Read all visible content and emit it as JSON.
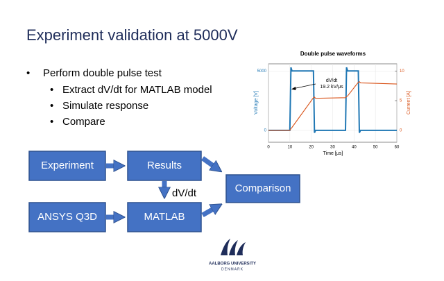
{
  "slide": {
    "title": "Experiment validation at 5000V",
    "bullets": [
      {
        "text": "Perform double pulse test",
        "sub": [
          "Extract dV/dt for MATLAB model",
          "Simulate response",
          "Compare"
        ]
      }
    ]
  },
  "diagram": {
    "nodes": [
      "Experiment",
      "Results",
      "Comparison",
      "ANSYS Q3D",
      "MATLAB"
    ],
    "edge_label": "dV/dt"
  },
  "logo": {
    "name": "AALBORG UNIVERSITY",
    "country": "DENMARK"
  },
  "chart_data": {
    "type": "line",
    "title": "Double pulse waveforms",
    "x_label": "Time [μs]",
    "y_label": "Voltage [V]",
    "y2_label": "Current [A]",
    "annotation": [
      "dV/dt",
      "19.2 kV/μs"
    ],
    "x": [
      0,
      10,
      10.5,
      11,
      21,
      21.5,
      22,
      36,
      36.5,
      37,
      42,
      42.5,
      43,
      60
    ],
    "series": [
      {
        "name": "Voltage",
        "color": "#1f77b4",
        "values": [
          0,
          0,
          5300,
          5000,
          5000,
          -200,
          0,
          0,
          5300,
          5000,
          5000,
          -200,
          0,
          0
        ]
      },
      {
        "name": "Current",
        "color": "#d95319",
        "axis": "y2",
        "values": [
          0,
          0,
          0.3,
          0.5,
          5.5,
          5.6,
          5.4,
          5.5,
          5.7,
          5.8,
          8.1,
          8.2,
          8,
          7.8
        ]
      }
    ],
    "xlim": [
      0,
      60
    ],
    "xticks": [
      0,
      10,
      20,
      30,
      40,
      50,
      60
    ],
    "ylim": [
      -1000,
      5600
    ],
    "yticks": [
      0,
      5000
    ],
    "y2lim": [
      -2,
      11.2
    ],
    "y2ticks": [
      0,
      5,
      10
    ]
  }
}
